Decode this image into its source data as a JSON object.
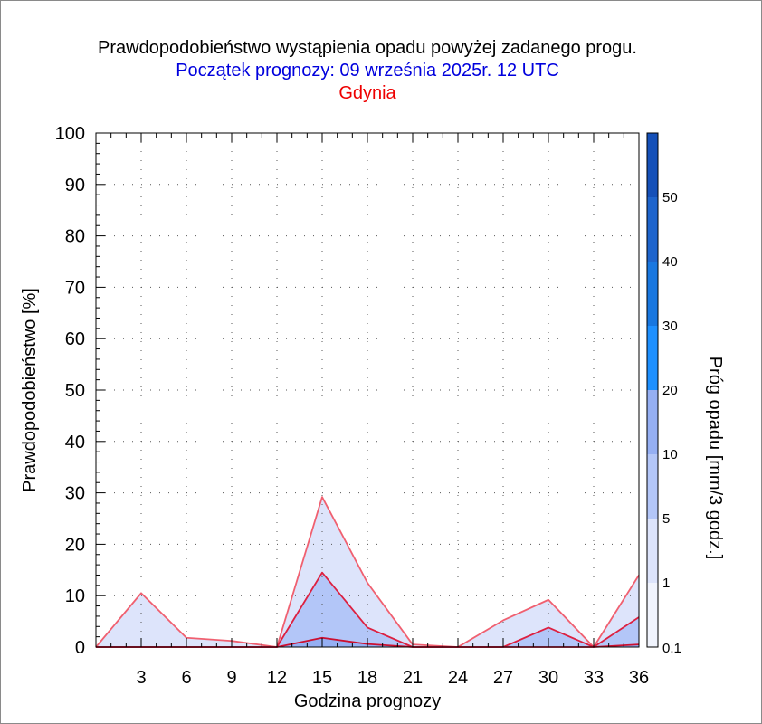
{
  "header": {
    "title": "Prawdopodobieństwo wystąpienia opadu powyżej zadanego progu.",
    "subtitle": "Początek prognozy: 09 września 2025r. 12 UTC",
    "location": "Gdynia"
  },
  "chart_data": {
    "type": "area",
    "title": "Prawdopodobieństwo wystąpienia opadu powyżej zadanego progu.",
    "subtitle": "Początek prognozy: 09 września 2025r. 12 UTC",
    "location": "Gdynia",
    "xlabel": "Godzina prognozy",
    "ylabel": "Prawdopodobieństwo [%]",
    "colorbar_label": "Próg opadu [mm/3 godz.]",
    "xlim": [
      0,
      36
    ],
    "ylim": [
      0,
      100
    ],
    "x_ticks": [
      3,
      6,
      9,
      12,
      15,
      18,
      21,
      24,
      27,
      30,
      33,
      36
    ],
    "y_ticks": [
      0,
      10,
      20,
      30,
      40,
      50,
      60,
      70,
      80,
      90,
      100
    ],
    "grid": true,
    "x": [
      0,
      3,
      6,
      9,
      12,
      15,
      18,
      21,
      24,
      27,
      30,
      33,
      36
    ],
    "series": [
      {
        "threshold": "0.1",
        "color": "#dde4fb",
        "values": [
          0,
          10.5,
          1.8,
          1.2,
          0,
          29.2,
          12.5,
          0.5,
          0,
          5.2,
          9.2,
          0,
          14
        ]
      },
      {
        "threshold": "1",
        "color": "#b3c6f8",
        "values": [
          0,
          0,
          0,
          0,
          0,
          14.5,
          3.8,
          0,
          0,
          0,
          3.8,
          0,
          5.8
        ]
      },
      {
        "threshold": "5",
        "color": "#95aff3",
        "values": [
          0,
          0,
          0,
          0,
          0,
          1.8,
          0.6,
          0,
          0,
          0,
          0,
          0,
          0.5
        ]
      }
    ],
    "colorbar": {
      "tick_labels": [
        "0.1",
        "1",
        "5",
        "10",
        "20",
        "30",
        "40",
        "50"
      ],
      "colors": [
        "#f1f4fd",
        "#dde4fb",
        "#b3c6f8",
        "#95aff3",
        "#1e90ff",
        "#1877e0",
        "#1e64cc",
        "#1550b8",
        "#0a3ea0"
      ]
    }
  }
}
